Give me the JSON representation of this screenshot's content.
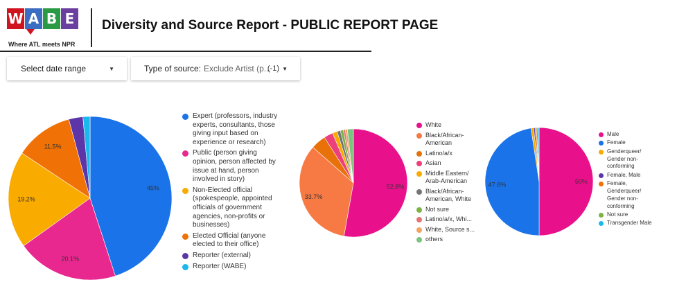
{
  "header": {
    "logo_letters": [
      "W",
      "A",
      "B",
      "E"
    ],
    "logo_colors": [
      "#d0141f",
      "#3b6ec2",
      "#2b9a44",
      "#6b3fa0"
    ],
    "logo_tagline": "Where ATL meets NPR",
    "title": "Diversity and Source Report - PUBLIC REPORT PAGE"
  },
  "controls": {
    "date_range_label": "Select date range",
    "source_type_label": "Type of source:",
    "source_type_value": "Exclude Artist (p...",
    "source_type_count": "(-1)",
    "caret_icon": "dropdown-caret-icon"
  },
  "chart_data": [
    {
      "type": "pie",
      "start_angle_deg": 0,
      "slices": [
        {
          "label": "Expert (professors, industry experts, consultants, those giving input based on experience or research)",
          "value": 45,
          "display": "45%",
          "color": "#1a73e8"
        },
        {
          "label": "Public (person giving opinion, person affected by issue at hand, person involved in story)",
          "value": 20.1,
          "display": "20.1%",
          "color": "#e8288f"
        },
        {
          "label": "Non-Elected official (spokespeople, appointed officials of government agencies, non-profits or businesses)",
          "value": 19.2,
          "display": "19.2%",
          "color": "#f9ab00"
        },
        {
          "label": "Elected Official (anyone elected to their office)",
          "value": 11.5,
          "display": "11.5%",
          "color": "#f07105"
        },
        {
          "label": "Reporter (external)",
          "value": 2.8,
          "display": "",
          "color": "#5c36a9"
        },
        {
          "label": "Reporter (WABE)",
          "value": 1.4,
          "display": "",
          "color": "#1bb8ee"
        }
      ]
    },
    {
      "type": "pie",
      "start_angle_deg": 0,
      "slices": [
        {
          "label": "White",
          "value": 52.8,
          "display": "52.8%",
          "color": "#e8118b"
        },
        {
          "label": "Black/African-American",
          "value": 33.7,
          "display": "33.7%",
          "color": "#f77a45"
        },
        {
          "label": "Latino/a/x",
          "value": 4.5,
          "display": "",
          "color": "#e8710a"
        },
        {
          "label": "Asian",
          "value": 2.7,
          "display": "",
          "color": "#ec407a"
        },
        {
          "label": "Middle Eastern/ Arab-American",
          "value": 1.4,
          "display": "",
          "color": "#f9ab00"
        },
        {
          "label": "Black/African-American, White",
          "value": 1.0,
          "display": "",
          "color": "#757575"
        },
        {
          "label": "Not sure",
          "value": 0.9,
          "display": "",
          "color": "#7cb342"
        },
        {
          "label": "Latino/a/x, Whi...",
          "value": 0.6,
          "display": "",
          "color": "#e57373"
        },
        {
          "label": "White, Source s...",
          "value": 0.6,
          "display": "",
          "color": "#f4a460"
        },
        {
          "label": "others",
          "value": 1.8,
          "display": "",
          "color": "#7bc47f"
        }
      ]
    },
    {
      "type": "pie",
      "start_angle_deg": 0,
      "slices": [
        {
          "label": "Male",
          "value": 50,
          "display": "50%",
          "color": "#e8118b"
        },
        {
          "label": "Female",
          "value": 47.6,
          "display": "47.6%",
          "color": "#1a73e8"
        },
        {
          "label": "Genderqueer/ Gender non-conforming",
          "value": 0.8,
          "display": "",
          "color": "#f9ab00"
        },
        {
          "label": "Female, Male",
          "value": 0.4,
          "display": "",
          "color": "#5c36a9"
        },
        {
          "label": "Female, Genderqueer/ Gender non-conforming",
          "value": 0.4,
          "display": "",
          "color": "#f07105"
        },
        {
          "label": "Not sure",
          "value": 0.4,
          "display": "",
          "color": "#7cb342"
        },
        {
          "label": "Transgender Male",
          "value": 0.4,
          "display": "",
          "color": "#1bb8ee"
        }
      ]
    }
  ]
}
